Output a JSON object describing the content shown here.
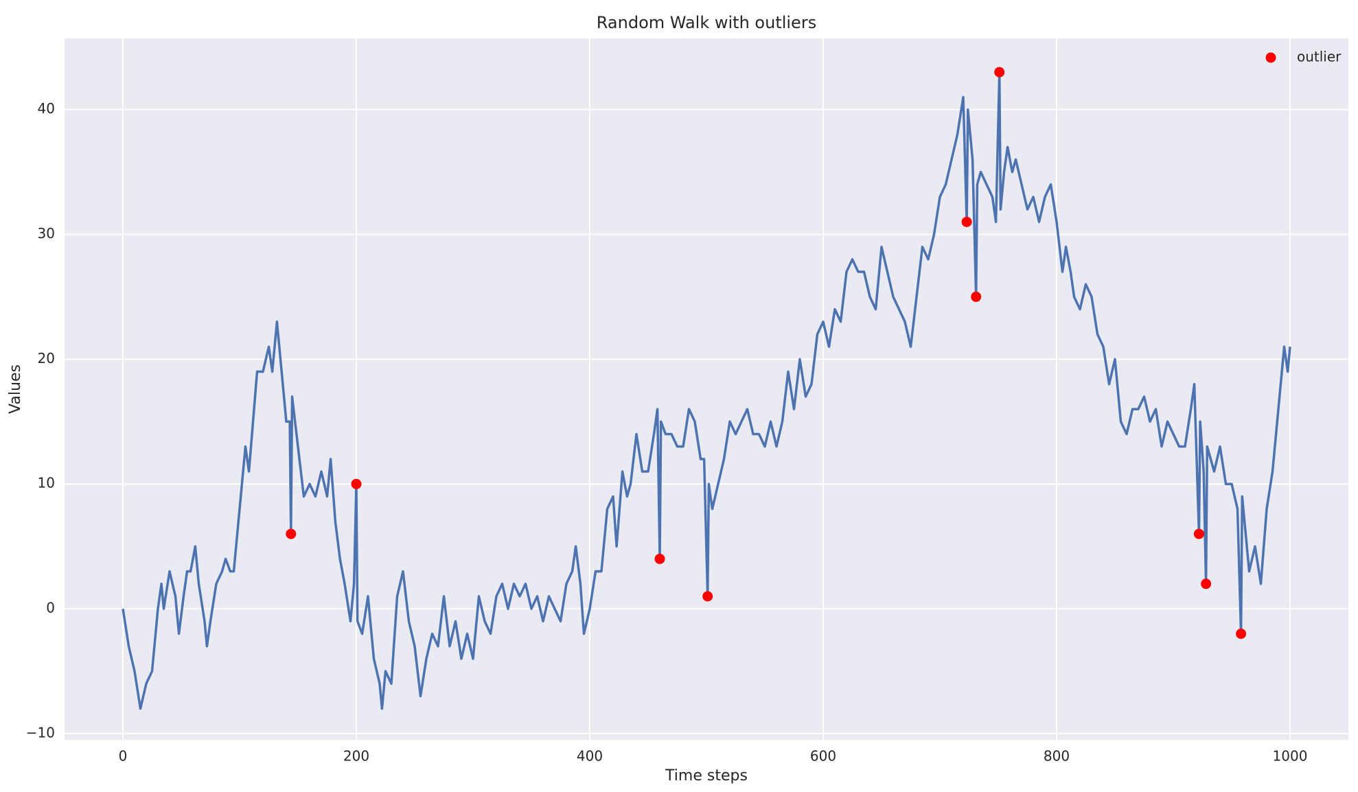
{
  "chart_data": {
    "type": "line",
    "title": "Random Walk with outliers",
    "xlabel": "Time steps",
    "ylabel": "Values",
    "color": "#4c72b0",
    "x": [
      0,
      5,
      10,
      15,
      20,
      25,
      30,
      33,
      35,
      40,
      45,
      48,
      52,
      55,
      58,
      62,
      65,
      70,
      72,
      75,
      80,
      85,
      88,
      92,
      95,
      100,
      105,
      108,
      115,
      120,
      125,
      128,
      132,
      140,
      143,
      144,
      145,
      150,
      155,
      160,
      165,
      170,
      175,
      178,
      182,
      186,
      190,
      195,
      198,
      200,
      201,
      205,
      210,
      215,
      220,
      222,
      225,
      230,
      235,
      240,
      245,
      250,
      255,
      260,
      265,
      270,
      275,
      280,
      285,
      290,
      295,
      300,
      305,
      310,
      315,
      320,
      325,
      330,
      335,
      340,
      345,
      350,
      355,
      360,
      365,
      370,
      375,
      380,
      385,
      388,
      392,
      395,
      400,
      405,
      410,
      415,
      420,
      423,
      428,
      432,
      435,
      440,
      445,
      450,
      455,
      458,
      460,
      461,
      465,
      470,
      475,
      480,
      485,
      490,
      495,
      498,
      501,
      502,
      505,
      510,
      515,
      520,
      525,
      530,
      535,
      540,
      545,
      550,
      555,
      560,
      565,
      570,
      575,
      580,
      585,
      590,
      595,
      600,
      605,
      610,
      615,
      620,
      625,
      630,
      635,
      640,
      645,
      650,
      655,
      660,
      665,
      670,
      675,
      680,
      685,
      690,
      695,
      700,
      705,
      710,
      715,
      720,
      723,
      724,
      728,
      731,
      732,
      735,
      740,
      745,
      748,
      751,
      752,
      755,
      758,
      762,
      765,
      770,
      775,
      780,
      785,
      790,
      795,
      800,
      805,
      808,
      812,
      815,
      820,
      825,
      830,
      835,
      840,
      845,
      850,
      855,
      860,
      865,
      870,
      875,
      880,
      885,
      890,
      895,
      900,
      905,
      910,
      915,
      918,
      922,
      923,
      926,
      928,
      929,
      935,
      940,
      945,
      950,
      955,
      958,
      959,
      962,
      965,
      970,
      975,
      980,
      985,
      990,
      995,
      998,
      1000
    ],
    "values": [
      0,
      -3,
      -5,
      -8,
      -6,
      -5,
      0,
      2,
      0,
      3,
      1,
      -2,
      1,
      3,
      3,
      5,
      2,
      -1,
      -3,
      -1,
      2,
      3,
      4,
      3,
      3,
      8,
      13,
      11,
      19,
      19,
      21,
      19,
      23,
      15,
      15,
      6,
      17,
      13,
      9,
      10,
      9,
      11,
      9,
      12,
      7,
      4,
      2,
      -1,
      2,
      10,
      -1,
      -2,
      1,
      -4,
      -6,
      -8,
      -5,
      -6,
      1,
      3,
      -1,
      -3,
      -7,
      -4,
      -2,
      -3,
      1,
      -3,
      -1,
      -4,
      -2,
      -4,
      1,
      -1,
      -2,
      1,
      2,
      0,
      2,
      1,
      2,
      0,
      1,
      -1,
      1,
      0,
      -1,
      2,
      3,
      5,
      2,
      -2,
      0,
      3,
      3,
      8,
      9,
      5,
      11,
      9,
      10,
      14,
      11,
      11,
      14,
      16,
      4,
      15,
      14,
      14,
      13,
      13,
      16,
      15,
      12,
      12,
      1,
      10,
      8,
      10,
      12,
      15,
      14,
      15,
      16,
      14,
      14,
      13,
      15,
      13,
      15,
      19,
      16,
      20,
      17,
      18,
      22,
      23,
      21,
      24,
      23,
      27,
      28,
      27,
      27,
      25,
      24,
      29,
      27,
      25,
      24,
      23,
      21,
      25,
      29,
      28,
      30,
      33,
      34,
      36,
      38,
      41,
      31,
      40,
      36,
      25,
      34,
      35,
      34,
      33,
      31,
      43,
      32,
      35,
      37,
      35,
      36,
      34,
      32,
      33,
      31,
      33,
      34,
      31,
      27,
      29,
      27,
      25,
      24,
      26,
      25,
      22,
      21,
      18,
      20,
      15,
      14,
      16,
      16,
      17,
      15,
      16,
      13,
      15,
      14,
      13,
      13,
      16,
      18,
      6,
      15,
      11,
      2,
      13,
      11,
      13,
      10,
      10,
      8,
      -2,
      9,
      6,
      3,
      5,
      2,
      8,
      11,
      16,
      21,
      19,
      21
    ],
    "outliers": {
      "name": "outlier",
      "color": "#ff0000",
      "x": [
        144,
        200,
        460,
        501,
        723,
        731,
        751,
        922,
        928,
        958
      ],
      "values": [
        6,
        10,
        4,
        1,
        31,
        25,
        43,
        6,
        2,
        -2
      ]
    },
    "xlim": [
      -50,
      1050
    ],
    "ylim": [
      -10.5,
      45.7
    ],
    "xticks": [
      0,
      200,
      400,
      600,
      800,
      1000
    ],
    "yticks": [
      {
        "value": -10,
        "label": "−10"
      },
      0,
      10,
      20,
      30,
      40
    ],
    "grid": true,
    "legend": "upper right"
  }
}
